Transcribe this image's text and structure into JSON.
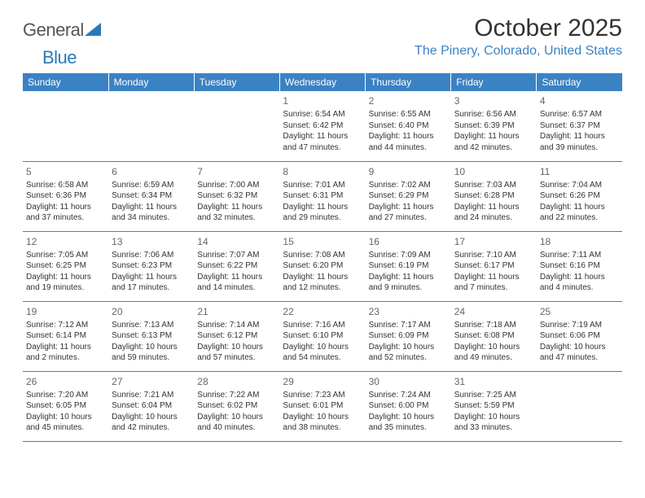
{
  "logo": {
    "general": "General",
    "blue": "Blue"
  },
  "title": "October 2025",
  "location": "The Pinery, Colorado, United States",
  "colors": {
    "header_bg": "#3b82c4",
    "header_text": "#ffffff",
    "accent": "#3b82c4",
    "body_text": "#333333",
    "daynum": "#666666",
    "logo_gray": "#555555",
    "logo_blue": "#2a7ab8",
    "background": "#ffffff"
  },
  "typography": {
    "title_fontsize": 30,
    "location_fontsize": 16,
    "dayhead_fontsize": 12,
    "cell_fontsize": 10,
    "logo_fontsize": 22
  },
  "weekdays": [
    "Sunday",
    "Monday",
    "Tuesday",
    "Wednesday",
    "Thursday",
    "Friday",
    "Saturday"
  ],
  "weeks": [
    [
      null,
      null,
      null,
      {
        "n": "1",
        "sunrise": "Sunrise: 6:54 AM",
        "sunset": "Sunset: 6:42 PM",
        "daylight": "Daylight: 11 hours and 47 minutes."
      },
      {
        "n": "2",
        "sunrise": "Sunrise: 6:55 AM",
        "sunset": "Sunset: 6:40 PM",
        "daylight": "Daylight: 11 hours and 44 minutes."
      },
      {
        "n": "3",
        "sunrise": "Sunrise: 6:56 AM",
        "sunset": "Sunset: 6:39 PM",
        "daylight": "Daylight: 11 hours and 42 minutes."
      },
      {
        "n": "4",
        "sunrise": "Sunrise: 6:57 AM",
        "sunset": "Sunset: 6:37 PM",
        "daylight": "Daylight: 11 hours and 39 minutes."
      }
    ],
    [
      {
        "n": "5",
        "sunrise": "Sunrise: 6:58 AM",
        "sunset": "Sunset: 6:36 PM",
        "daylight": "Daylight: 11 hours and 37 minutes."
      },
      {
        "n": "6",
        "sunrise": "Sunrise: 6:59 AM",
        "sunset": "Sunset: 6:34 PM",
        "daylight": "Daylight: 11 hours and 34 minutes."
      },
      {
        "n": "7",
        "sunrise": "Sunrise: 7:00 AM",
        "sunset": "Sunset: 6:32 PM",
        "daylight": "Daylight: 11 hours and 32 minutes."
      },
      {
        "n": "8",
        "sunrise": "Sunrise: 7:01 AM",
        "sunset": "Sunset: 6:31 PM",
        "daylight": "Daylight: 11 hours and 29 minutes."
      },
      {
        "n": "9",
        "sunrise": "Sunrise: 7:02 AM",
        "sunset": "Sunset: 6:29 PM",
        "daylight": "Daylight: 11 hours and 27 minutes."
      },
      {
        "n": "10",
        "sunrise": "Sunrise: 7:03 AM",
        "sunset": "Sunset: 6:28 PM",
        "daylight": "Daylight: 11 hours and 24 minutes."
      },
      {
        "n": "11",
        "sunrise": "Sunrise: 7:04 AM",
        "sunset": "Sunset: 6:26 PM",
        "daylight": "Daylight: 11 hours and 22 minutes."
      }
    ],
    [
      {
        "n": "12",
        "sunrise": "Sunrise: 7:05 AM",
        "sunset": "Sunset: 6:25 PM",
        "daylight": "Daylight: 11 hours and 19 minutes."
      },
      {
        "n": "13",
        "sunrise": "Sunrise: 7:06 AM",
        "sunset": "Sunset: 6:23 PM",
        "daylight": "Daylight: 11 hours and 17 minutes."
      },
      {
        "n": "14",
        "sunrise": "Sunrise: 7:07 AM",
        "sunset": "Sunset: 6:22 PM",
        "daylight": "Daylight: 11 hours and 14 minutes."
      },
      {
        "n": "15",
        "sunrise": "Sunrise: 7:08 AM",
        "sunset": "Sunset: 6:20 PM",
        "daylight": "Daylight: 11 hours and 12 minutes."
      },
      {
        "n": "16",
        "sunrise": "Sunrise: 7:09 AM",
        "sunset": "Sunset: 6:19 PM",
        "daylight": "Daylight: 11 hours and 9 minutes."
      },
      {
        "n": "17",
        "sunrise": "Sunrise: 7:10 AM",
        "sunset": "Sunset: 6:17 PM",
        "daylight": "Daylight: 11 hours and 7 minutes."
      },
      {
        "n": "18",
        "sunrise": "Sunrise: 7:11 AM",
        "sunset": "Sunset: 6:16 PM",
        "daylight": "Daylight: 11 hours and 4 minutes."
      }
    ],
    [
      {
        "n": "19",
        "sunrise": "Sunrise: 7:12 AM",
        "sunset": "Sunset: 6:14 PM",
        "daylight": "Daylight: 11 hours and 2 minutes."
      },
      {
        "n": "20",
        "sunrise": "Sunrise: 7:13 AM",
        "sunset": "Sunset: 6:13 PM",
        "daylight": "Daylight: 10 hours and 59 minutes."
      },
      {
        "n": "21",
        "sunrise": "Sunrise: 7:14 AM",
        "sunset": "Sunset: 6:12 PM",
        "daylight": "Daylight: 10 hours and 57 minutes."
      },
      {
        "n": "22",
        "sunrise": "Sunrise: 7:16 AM",
        "sunset": "Sunset: 6:10 PM",
        "daylight": "Daylight: 10 hours and 54 minutes."
      },
      {
        "n": "23",
        "sunrise": "Sunrise: 7:17 AM",
        "sunset": "Sunset: 6:09 PM",
        "daylight": "Daylight: 10 hours and 52 minutes."
      },
      {
        "n": "24",
        "sunrise": "Sunrise: 7:18 AM",
        "sunset": "Sunset: 6:08 PM",
        "daylight": "Daylight: 10 hours and 49 minutes."
      },
      {
        "n": "25",
        "sunrise": "Sunrise: 7:19 AM",
        "sunset": "Sunset: 6:06 PM",
        "daylight": "Daylight: 10 hours and 47 minutes."
      }
    ],
    [
      {
        "n": "26",
        "sunrise": "Sunrise: 7:20 AM",
        "sunset": "Sunset: 6:05 PM",
        "daylight": "Daylight: 10 hours and 45 minutes."
      },
      {
        "n": "27",
        "sunrise": "Sunrise: 7:21 AM",
        "sunset": "Sunset: 6:04 PM",
        "daylight": "Daylight: 10 hours and 42 minutes."
      },
      {
        "n": "28",
        "sunrise": "Sunrise: 7:22 AM",
        "sunset": "Sunset: 6:02 PM",
        "daylight": "Daylight: 10 hours and 40 minutes."
      },
      {
        "n": "29",
        "sunrise": "Sunrise: 7:23 AM",
        "sunset": "Sunset: 6:01 PM",
        "daylight": "Daylight: 10 hours and 38 minutes."
      },
      {
        "n": "30",
        "sunrise": "Sunrise: 7:24 AM",
        "sunset": "Sunset: 6:00 PM",
        "daylight": "Daylight: 10 hours and 35 minutes."
      },
      {
        "n": "31",
        "sunrise": "Sunrise: 7:25 AM",
        "sunset": "Sunset: 5:59 PM",
        "daylight": "Daylight: 10 hours and 33 minutes."
      },
      null
    ]
  ]
}
